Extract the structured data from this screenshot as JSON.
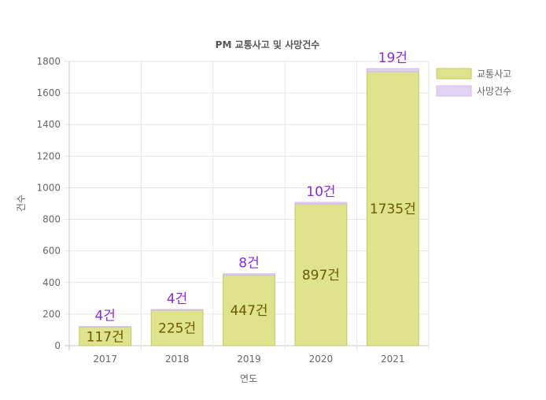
{
  "chart_data": {
    "type": "bar",
    "title": "PM 교통사고 및 사망건수",
    "xlabel": "연도",
    "ylabel": "건수",
    "categories": [
      "2017",
      "2018",
      "2019",
      "2020",
      "2021"
    ],
    "series": [
      {
        "name": "교통사고",
        "values": [
          117,
          225,
          447,
          897,
          1735
        ],
        "color": "#dfe38e",
        "border": "#c5c85a"
      },
      {
        "name": "사망건수",
        "values": [
          4,
          4,
          8,
          10,
          19
        ],
        "color": "#e4d2f5",
        "border": "#d2b8ee"
      }
    ],
    "value_labels": {
      "accidents": [
        "117건",
        "225건",
        "447건",
        "897건",
        "1735건"
      ],
      "deaths": [
        "4건",
        "4건",
        "8건",
        "10건",
        "19건"
      ]
    },
    "ylim": [
      0,
      1800
    ],
    "yticks": [
      0,
      200,
      400,
      600,
      800,
      1000,
      1200,
      1400,
      1600,
      1800
    ],
    "grid": true,
    "stacked": true,
    "legend_position": "right"
  }
}
